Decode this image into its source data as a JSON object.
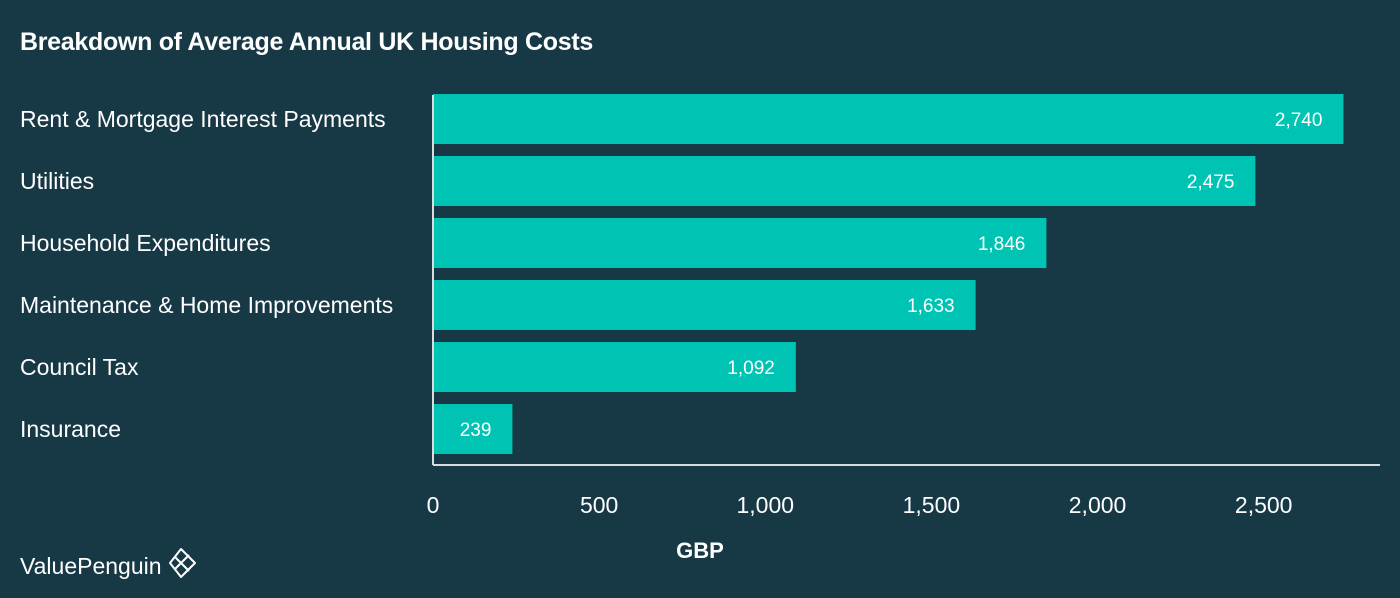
{
  "chart_data": {
    "type": "bar",
    "orientation": "horizontal",
    "title": "Breakdown of Average Annual UK Housing Costs",
    "xlabel": "GBP",
    "ylabel": "",
    "categories": [
      "Rent & Mortgage Interest Payments",
      "Utilities",
      "Household Expenditures",
      "Maintenance & Home Improvements",
      "Council Tax",
      "Insurance"
    ],
    "values": [
      2740,
      2475,
      1846,
      1633,
      1092,
      239
    ],
    "value_labels": [
      "2,740",
      "2,475",
      "1,846",
      "1,633",
      "1,092",
      "239"
    ],
    "xlim": [
      0,
      2850
    ],
    "xticks": [
      0,
      500,
      1000,
      1500,
      2000,
      2500
    ],
    "xtick_labels": [
      "0",
      "500",
      "1,000",
      "1,500",
      "2,000",
      "2,500"
    ],
    "grid": false,
    "legend": "none",
    "colors": {
      "background": "#173845",
      "bar": "#00c4b3",
      "text": "#ffffff",
      "axis": "#d8dde0"
    }
  },
  "brand": {
    "name": "ValuePenguin",
    "icon": "valuepenguin-logo-icon"
  }
}
